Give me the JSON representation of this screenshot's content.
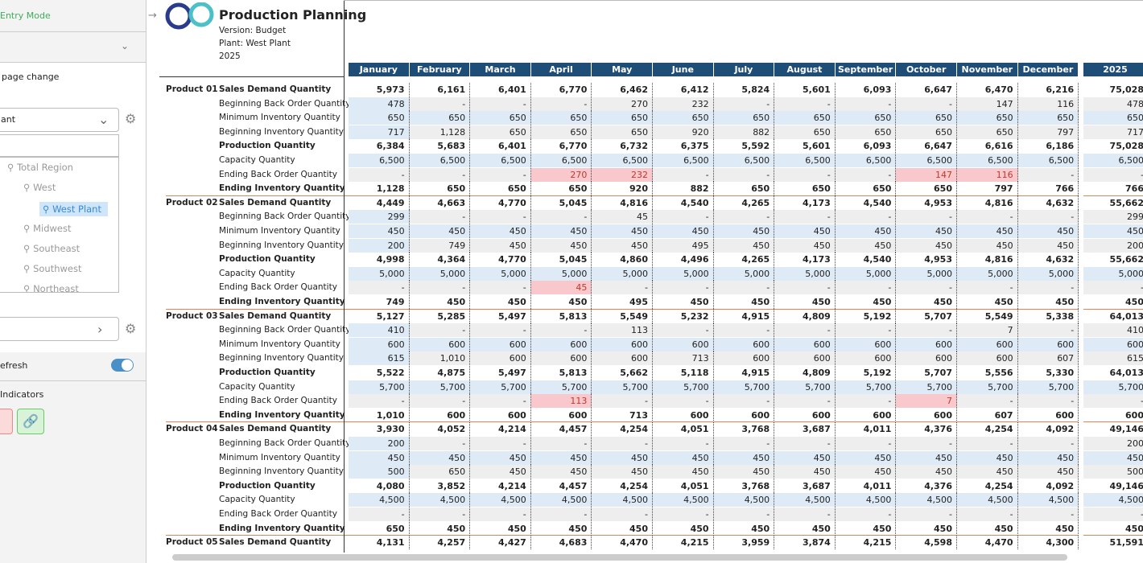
{
  "sidebar": {
    "entry_mode": "Entry Mode",
    "page_change": "page change",
    "select": "ant",
    "tree": [
      "Total Region",
      "West",
      "West Plant",
      "Midwest",
      "Southeast",
      "Southwest",
      "Northeast"
    ],
    "refresh": "efresh",
    "indicators": "Indicators"
  },
  "header": {
    "title": "Production Planning",
    "version": "Version: Budget",
    "plant": "Plant: West Plant",
    "year": "2025"
  },
  "table": {
    "columns": [
      "January",
      "February",
      "March",
      "April",
      "May",
      "June",
      "July",
      "August",
      "September",
      "October",
      "November",
      "December",
      "2025"
    ],
    "products": [
      {
        "name": "Product 01",
        "rows": [
          {
            "measure": "Sales Demand Quantity",
            "cells": [
              "5,973",
              "6,161",
              "6,401",
              "6,770",
              "6,462",
              "6,412",
              "5,824",
              "5,601",
              "6,093",
              "6,647",
              "6,470",
              "6,216",
              "75,028"
            ]
          },
          {
            "measure": "Beginning Back Order Quantity",
            "cells": [
              "478",
              "-",
              "-",
              "-",
              "270",
              "232",
              "-",
              "-",
              "-",
              "-",
              "147",
              "116",
              "478"
            ]
          },
          {
            "measure": "Minimum Inventory Quantity",
            "cells": [
              "650",
              "650",
              "650",
              "650",
              "650",
              "650",
              "650",
              "650",
              "650",
              "650",
              "650",
              "650",
              "650"
            ]
          },
          {
            "measure": "Beginning Inventory Quantity",
            "cells": [
              "717",
              "1,128",
              "650",
              "650",
              "650",
              "920",
              "882",
              "650",
              "650",
              "650",
              "650",
              "797",
              "717"
            ]
          },
          {
            "measure": "Production Quantity",
            "cells": [
              "6,384",
              "5,683",
              "6,401",
              "6,770",
              "6,732",
              "6,375",
              "5,592",
              "5,601",
              "6,093",
              "6,647",
              "6,616",
              "6,186",
              "75,028"
            ]
          },
          {
            "measure": "Capacity Quantity",
            "cells": [
              "6,500",
              "6,500",
              "6,500",
              "6,500",
              "6,500",
              "6,500",
              "6,500",
              "6,500",
              "6,500",
              "6,500",
              "6,500",
              "6,500",
              "6,500"
            ]
          },
          {
            "measure": "Ending Back Order Quantity",
            "cells": [
              "-",
              "-",
              "-",
              "270",
              "232",
              "-",
              "-",
              "-",
              "-",
              "147",
              "116",
              "-",
              "-"
            ]
          },
          {
            "measure": "Ending Inventory Quantity",
            "cells": [
              "1,128",
              "650",
              "650",
              "650",
              "920",
              "882",
              "650",
              "650",
              "650",
              "650",
              "797",
              "766",
              "766"
            ]
          }
        ]
      },
      {
        "name": "Product 02",
        "rows": [
          {
            "measure": "Sales Demand Quantity",
            "cells": [
              "4,449",
              "4,663",
              "4,770",
              "5,045",
              "4,816",
              "4,540",
              "4,265",
              "4,173",
              "4,540",
              "4,953",
              "4,816",
              "4,632",
              "55,662"
            ]
          },
          {
            "measure": "Beginning Back Order Quantity",
            "cells": [
              "299",
              "-",
              "-",
              "-",
              "45",
              "-",
              "-",
              "-",
              "-",
              "-",
              "-",
              "-",
              "299"
            ]
          },
          {
            "measure": "Minimum Inventory Quantity",
            "cells": [
              "450",
              "450",
              "450",
              "450",
              "450",
              "450",
              "450",
              "450",
              "450",
              "450",
              "450",
              "450",
              "450"
            ]
          },
          {
            "measure": "Beginning Inventory Quantity",
            "cells": [
              "200",
              "749",
              "450",
              "450",
              "450",
              "495",
              "450",
              "450",
              "450",
              "450",
              "450",
              "450",
              "200"
            ]
          },
          {
            "measure": "Production Quantity",
            "cells": [
              "4,998",
              "4,364",
              "4,770",
              "5,045",
              "4,860",
              "4,496",
              "4,265",
              "4,173",
              "4,540",
              "4,953",
              "4,816",
              "4,632",
              "55,662"
            ]
          },
          {
            "measure": "Capacity Quantity",
            "cells": [
              "5,000",
              "5,000",
              "5,000",
              "5,000",
              "5,000",
              "5,000",
              "5,000",
              "5,000",
              "5,000",
              "5,000",
              "5,000",
              "5,000",
              "5,000"
            ]
          },
          {
            "measure": "Ending Back Order Quantity",
            "cells": [
              "-",
              "-",
              "-",
              "45",
              "-",
              "-",
              "-",
              "-",
              "-",
              "-",
              "-",
              "-",
              "-"
            ]
          },
          {
            "measure": "Ending Inventory Quantity",
            "cells": [
              "749",
              "450",
              "450",
              "450",
              "495",
              "450",
              "450",
              "450",
              "450",
              "450",
              "450",
              "450",
              "450"
            ]
          }
        ]
      },
      {
        "name": "Product 03",
        "rows": [
          {
            "measure": "Sales Demand Quantity",
            "cells": [
              "5,127",
              "5,285",
              "5,497",
              "5,813",
              "5,549",
              "5,232",
              "4,915",
              "4,809",
              "5,192",
              "5,707",
              "5,549",
              "5,338",
              "64,013"
            ]
          },
          {
            "measure": "Beginning Back Order Quantity",
            "cells": [
              "410",
              "-",
              "-",
              "-",
              "113",
              "-",
              "-",
              "-",
              "-",
              "-",
              "7",
              "-",
              "410"
            ]
          },
          {
            "measure": "Minimum Inventory Quantity",
            "cells": [
              "600",
              "600",
              "600",
              "600",
              "600",
              "600",
              "600",
              "600",
              "600",
              "600",
              "600",
              "600",
              "600"
            ]
          },
          {
            "measure": "Beginning Inventory Quantity",
            "cells": [
              "615",
              "1,010",
              "600",
              "600",
              "600",
              "713",
              "600",
              "600",
              "600",
              "600",
              "600",
              "607",
              "615"
            ]
          },
          {
            "measure": "Production Quantity",
            "cells": [
              "5,522",
              "4,875",
              "5,497",
              "5,813",
              "5,662",
              "5,118",
              "4,915",
              "4,809",
              "5,192",
              "5,707",
              "5,556",
              "5,330",
              "64,013"
            ]
          },
          {
            "measure": "Capacity Quantity",
            "cells": [
              "5,700",
              "5,700",
              "5,700",
              "5,700",
              "5,700",
              "5,700",
              "5,700",
              "5,700",
              "5,700",
              "5,700",
              "5,700",
              "5,700",
              "5,700"
            ]
          },
          {
            "measure": "Ending Back Order Quantity",
            "cells": [
              "-",
              "-",
              "-",
              "113",
              "-",
              "-",
              "-",
              "-",
              "-",
              "7",
              "-",
              "-",
              "-"
            ]
          },
          {
            "measure": "Ending Inventory Quantity",
            "cells": [
              "1,010",
              "600",
              "600",
              "600",
              "713",
              "600",
              "600",
              "600",
              "600",
              "600",
              "607",
              "600",
              "600"
            ]
          }
        ]
      },
      {
        "name": "Product 04",
        "rows": [
          {
            "measure": "Sales Demand Quantity",
            "cells": [
              "3,930",
              "4,052",
              "4,214",
              "4,457",
              "4,254",
              "4,051",
              "3,768",
              "3,687",
              "4,011",
              "4,376",
              "4,254",
              "4,092",
              "49,146"
            ]
          },
          {
            "measure": "Beginning Back Order Quantity",
            "cells": [
              "200",
              "-",
              "-",
              "-",
              "-",
              "-",
              "-",
              "-",
              "-",
              "-",
              "-",
              "-",
              "200"
            ]
          },
          {
            "measure": "Minimum Inventory Quantity",
            "cells": [
              "450",
              "450",
              "450",
              "450",
              "450",
              "450",
              "450",
              "450",
              "450",
              "450",
              "450",
              "450",
              "450"
            ]
          },
          {
            "measure": "Beginning Inventory Quantity",
            "cells": [
              "500",
              "650",
              "450",
              "450",
              "450",
              "450",
              "450",
              "450",
              "450",
              "450",
              "450",
              "450",
              "500"
            ]
          },
          {
            "measure": "Production Quantity",
            "cells": [
              "4,080",
              "3,852",
              "4,214",
              "4,457",
              "4,254",
              "4,051",
              "3,768",
              "3,687",
              "4,011",
              "4,376",
              "4,254",
              "4,092",
              "49,146"
            ]
          },
          {
            "measure": "Capacity Quantity",
            "cells": [
              "4,500",
              "4,500",
              "4,500",
              "4,500",
              "4,500",
              "4,500",
              "4,500",
              "4,500",
              "4,500",
              "4,500",
              "4,500",
              "4,500",
              "4,500"
            ]
          },
          {
            "measure": "Ending Back Order Quantity",
            "cells": [
              "-",
              "-",
              "-",
              "-",
              "-",
              "-",
              "-",
              "-",
              "-",
              "-",
              "-",
              "-",
              "-"
            ]
          },
          {
            "measure": "Ending Inventory Quantity",
            "cells": [
              "650",
              "450",
              "450",
              "450",
              "450",
              "450",
              "450",
              "450",
              "450",
              "450",
              "450",
              "450",
              "450"
            ]
          }
        ]
      },
      {
        "name": "Product 05",
        "rows": [
          {
            "measure": "Sales Demand Quantity",
            "cells": [
              "4,131",
              "4,257",
              "4,427",
              "4,683",
              "4,470",
              "4,215",
              "3,959",
              "3,874",
              "4,215",
              "4,598",
              "4,470",
              "4,300",
              "51,591"
            ]
          }
        ]
      }
    ]
  }
}
